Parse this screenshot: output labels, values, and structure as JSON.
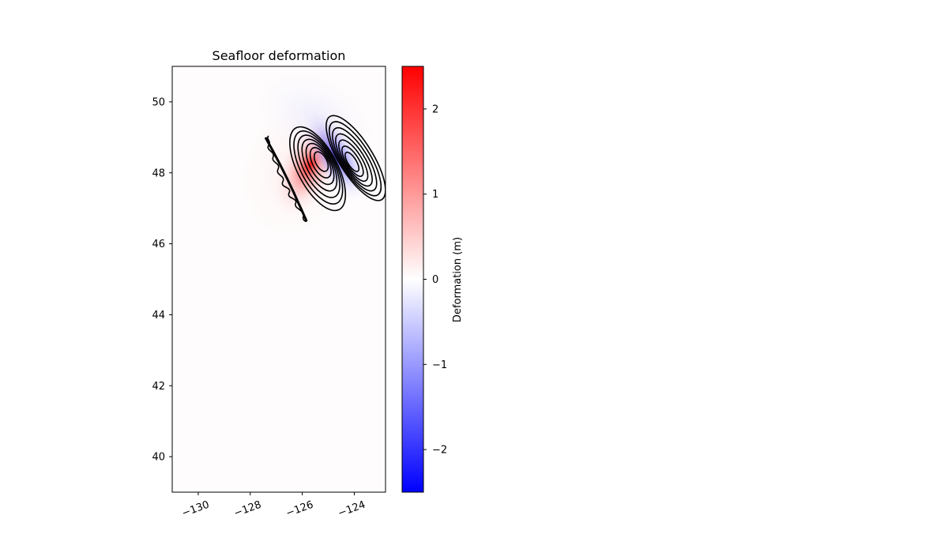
{
  "chart_data": {
    "type": "heatmap",
    "title": "Seafloor deformation",
    "xlabel": "",
    "ylabel": "",
    "xlim": [
      -131,
      -122.8
    ],
    "ylim": [
      39,
      51
    ],
    "xticks": [
      -130,
      -128,
      -126,
      -124
    ],
    "yticks": [
      40,
      42,
      44,
      46,
      48,
      50
    ],
    "x_tick_labels": [
      "−130",
      "−128",
      "−126",
      "−124"
    ],
    "y_tick_labels": [
      "40",
      "42",
      "44",
      "46",
      "48",
      "50"
    ],
    "colorbar": {
      "label": "Deformation (m)",
      "vmin": -2.5,
      "vmax": 2.5,
      "ticks": [
        -2,
        -1,
        0,
        1,
        2
      ],
      "tick_labels": [
        "−2",
        "−1",
        "0",
        "1",
        "2"
      ],
      "colors": [
        "#0000ff",
        "#ffffff",
        "#ff0000"
      ]
    },
    "grid": false,
    "features": {
      "uplift": {
        "peak_value": 2.4,
        "center_lon": -125.25,
        "center_lat": 48.35,
        "contour_levels": [
          0.3,
          0.6,
          0.9,
          1.2,
          1.5,
          1.8,
          2.1
        ]
      },
      "subsidence": {
        "peak_value": -1.5,
        "center_lon": -124.1,
        "center_lat": 48.3,
        "contour_levels": [
          -0.2,
          -0.4,
          -0.6,
          -0.8,
          -1.0,
          -1.2,
          -1.4
        ]
      }
    }
  }
}
